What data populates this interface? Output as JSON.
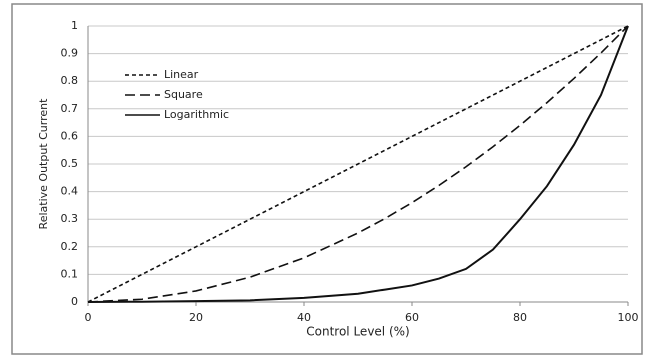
{
  "chart_data": {
    "type": "line",
    "x_label": "Control Level (%)",
    "y_label": "Relative Output Current",
    "x": [
      0,
      10,
      20,
      30,
      40,
      50,
      55,
      60,
      65,
      70,
      75,
      80,
      85,
      90,
      95,
      100
    ],
    "series": [
      {
        "name": "Linear",
        "color": "#111111",
        "dash": "short",
        "values": [
          0,
          0.1,
          0.2,
          0.3,
          0.4,
          0.5,
          0.55,
          0.6,
          0.65,
          0.7,
          0.75,
          0.8,
          0.85,
          0.9,
          0.95,
          1
        ]
      },
      {
        "name": "Square",
        "color": "#111111",
        "dash": "long",
        "values": [
          0,
          0.01,
          0.04,
          0.09,
          0.16,
          0.25,
          0.3025,
          0.36,
          0.4225,
          0.49,
          0.5625,
          0.64,
          0.7225,
          0.81,
          0.9025,
          1
        ]
      },
      {
        "name": "Logarithmic",
        "color": "#111111",
        "dash": "solid",
        "values": [
          0,
          0.001,
          0.003,
          0.006,
          0.015,
          0.03,
          0.045,
          0.06,
          0.085,
          0.12,
          0.19,
          0.3,
          0.42,
          0.57,
          0.75,
          1
        ]
      }
    ],
    "xlim": [
      0,
      100
    ],
    "xticks": [
      0,
      20,
      40,
      60,
      80,
      100
    ],
    "ylim": [
      0,
      1
    ],
    "yticks": [
      0,
      0.1,
      0.2,
      0.3,
      0.4,
      0.5,
      0.6,
      0.7,
      0.8,
      0.9,
      1
    ],
    "grid": true
  }
}
